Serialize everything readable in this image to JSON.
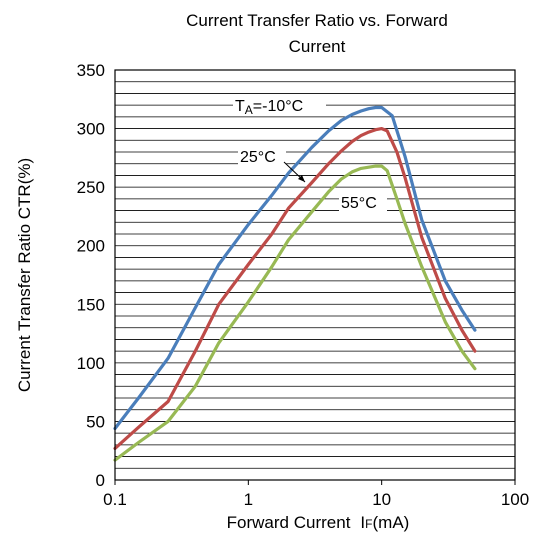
{
  "chart_data": {
    "type": "line",
    "title_line1": "Current Transfer Ratio vs. Forward",
    "title_line2": "Current",
    "xlabel": "Forward Current",
    "xlabel_symbol": "I",
    "xlabel_subscript": "F",
    "xlabel_unit": "(mA)",
    "ylabel": "Current Transfer Ratio  CTR(%)",
    "x_scale": "log",
    "xlim": [
      0.1,
      100
    ],
    "ylim": [
      0,
      350
    ],
    "x_ticks": [
      0.1,
      1,
      10,
      100
    ],
    "x_tick_labels": [
      "0.1",
      "1",
      "10",
      "100"
    ],
    "y_ticks": [
      0,
      50,
      100,
      150,
      200,
      250,
      300,
      350
    ],
    "y_tick_labels": [
      "0",
      "50",
      "100",
      "150",
      "200",
      "250",
      "300",
      "350"
    ],
    "grid": "horizontal",
    "annotations": {
      "a1_main": "T",
      "a1_sub": "A",
      "a1_rest": "=-10°C",
      "a2": "25°C",
      "a3": "55°C"
    },
    "series": [
      {
        "color": "#4a7ebb",
        "x": [
          0.1,
          0.15,
          0.25,
          0.4,
          0.6,
          1,
          1.5,
          2,
          3,
          4,
          5,
          6,
          7,
          8,
          9,
          10,
          12,
          15,
          20,
          30,
          40,
          50
        ],
        "y": [
          44,
          70,
          104,
          147,
          184,
          218,
          243,
          262,
          284,
          298,
          307,
          312,
          315,
          317,
          318,
          318,
          311,
          276,
          222,
          170,
          145,
          128
        ]
      },
      {
        "color": "#be4b48",
        "x": [
          0.1,
          0.15,
          0.25,
          0.4,
          0.6,
          1,
          1.5,
          2,
          3,
          4,
          5,
          6,
          7,
          8,
          9,
          10,
          11,
          13,
          15,
          20,
          30,
          40,
          50
        ],
        "y": [
          27,
          45,
          67,
          110,
          150,
          184,
          210,
          232,
          254,
          270,
          281,
          289,
          294,
          297,
          299,
          300,
          298,
          280,
          258,
          207,
          155,
          128,
          110
        ]
      },
      {
        "color": "#98b954",
        "x": [
          0.1,
          0.15,
          0.25,
          0.4,
          0.6,
          1,
          1.5,
          2,
          3,
          4,
          5,
          6,
          7,
          8,
          9,
          10,
          11,
          13,
          15,
          20,
          30,
          40,
          50
        ],
        "y": [
          17,
          32,
          50,
          80,
          117,
          152,
          182,
          205,
          229,
          246,
          257,
          263,
          266,
          267,
          268,
          268,
          264,
          240,
          219,
          182,
          135,
          110,
          95
        ]
      }
    ]
  }
}
